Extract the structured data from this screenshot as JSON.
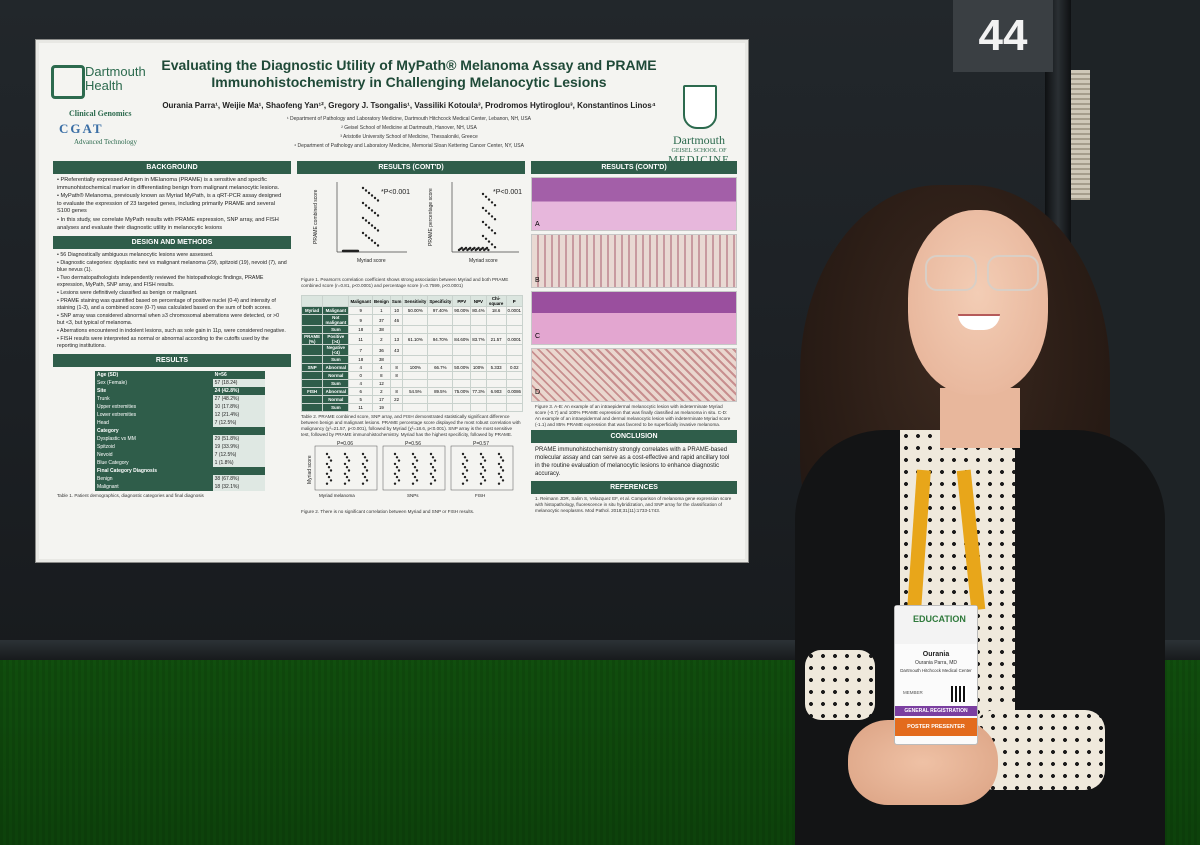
{
  "booth_number": "44",
  "poster": {
    "title": "Evaluating the Diagnostic Utility of MyPath® Melanoma Assay and PRAME Immunohistochemistry in Challenging Melanocytic Lesions",
    "authors": "Ourania Parra¹, Weijie Ma¹, Shaofeng Yan¹², Gregory J. Tsongalis¹, Vassiliki Kotoula³, Prodromos Hytiroglou³, Konstantinos Linos⁴",
    "affiliations": [
      "¹ Department of Pathology and Laboratory Medicine, Dartmouth Hitchcock Medical Center, Lebanon, NH, USA",
      "² Geisel School of Medicine at Dartmouth, Hanover, NH, USA",
      "³ Aristotle University School of Medicine, Thessaloniki, Greece",
      "⁴ Department of Pathology and Laboratory Medicine, Memorial Sloan Kettering Cancer Center, NY, USA"
    ],
    "logo_left": "Dartmouth Health",
    "logo_cg_label": "Clinical Genomics",
    "logo_cg_dna": "CGAT",
    "logo_cg_sub": "Advanced Technology",
    "logo_right_a": "Dartmouth",
    "logo_right_b": "GEISEL SCHOOL OF",
    "logo_right_c": "MEDICINE",
    "sections": {
      "background": "BACKGROUND",
      "design": "DESIGN AND METHODS",
      "results": "RESULTS",
      "results_contd_1": "RESULTS (CONT'D)",
      "results_contd_2": "RESULTS (CONT'D)",
      "conclusion": "CONCLUSION",
      "references": "REFERENCES"
    },
    "background_bullets": [
      "PReferentially expressed Antigen in MElanoma (PRAME) is a sensitive and specific immunohistochemical marker in differentiating benign from malignant melanocytic lesions.",
      "MyPath® Melanoma, previously known as Myriad MyPath, is a qRT-PCR assay designed to evaluate the expression of 23 targeted genes, including primarily PRAME and several S100 genes",
      "In this study, we correlate MyPath results with PRAME expression, SNP array, and FISH analyses and evaluate their diagnostic utility in melanocytic lesions"
    ],
    "design_bullets": [
      "56 Diagnostically ambiguous melanocytic lesions were assessed.",
      "Diagnostic categories: dysplastic nevi vs malignant melanoma (29), spitzoid (19), nevoid (7), and blue nevus (1).",
      "Two dermatopathologists independently reviewed the histopathologic findings, PRAME expression, MyPath, SNP array, and FISH results.",
      "Lesions were definitively classified as benign or malignant.",
      "PRAME staining was quantified based on percentage of positive nuclei (0-4) and intensity of staining (1-3), and a combined score (0-7) was calculated based on the sum of both scores.",
      "SNP array was considered abnormal when ≥3 chromosomal aberrations were detected, or >0 but <3, but typical of melanoma.",
      "Aberrations encountered in indolent lesions, such as sole gain in 11p, were considered negative.",
      "FISH results were interpreted as normal or abnormal according to the cutoffs used by the reporting institutions."
    ],
    "demo_table": [
      {
        "k": "Age (SD)",
        "v": "N=56",
        "head": true
      },
      {
        "k": "Sex (Female)",
        "v": "57 (18.24)"
      },
      {
        "k": "Site",
        "v": "24 (42.8%)",
        "head": true
      },
      {
        "k": "Trunk",
        "v": "27 (48.2%)"
      },
      {
        "k": "Upper extremities",
        "v": "10 (17.8%)"
      },
      {
        "k": "Lower extremities",
        "v": "12 (21.4%)"
      },
      {
        "k": "Head",
        "v": "7 (12.5%)"
      },
      {
        "k": "Category",
        "v": "",
        "head": true
      },
      {
        "k": "Dysplastic vs MM",
        "v": "29 (51.8%)"
      },
      {
        "k": "Spitzoid",
        "v": "19 (33.9%)"
      },
      {
        "k": "Nevoid",
        "v": "7 (12.5%)"
      },
      {
        "k": "Blue Category",
        "v": "1 (1.8%)"
      },
      {
        "k": "Final Category Diagnosis",
        "v": "",
        "head": true
      },
      {
        "k": "Benign",
        "v": "38 (67.8%)"
      },
      {
        "k": "Malignant",
        "v": "18 (32.1%)"
      }
    ],
    "table1_caption": "Table 1. Patient demographics, diagnostic categories and final diagnosis",
    "fig1": {
      "ylabel_a": "PRAME combined score",
      "ylabel_b": "PRAME percentage score",
      "xlabel": "Myriad score",
      "p_a": "*P<0.001",
      "p_b": "*P<0.001",
      "caption": "Figure 1. Pearson's correlation coefficient shows strong association between Myriad and both PRAME combined score (r=0.81, p<0.0001) and percentage score (r=0.7599, p<0.0001)"
    },
    "stats_header": [
      "",
      "",
      "Malignant",
      "Benign",
      "Sum",
      "Sensitivity",
      "Specificity",
      "PPV",
      "NPV",
      "Chi-square",
      "P"
    ],
    "stats_rows": [
      [
        "Myriad",
        "Malignant",
        "9",
        "1",
        "10",
        "50.00%",
        "97.40%",
        "90.00%",
        "80.4%",
        "18.6",
        "0.0001"
      ],
      [
        "",
        "Not malignant",
        "9",
        "37",
        "46",
        "",
        "",
        "",
        "",
        "",
        ""
      ],
      [
        "",
        "Sum",
        "18",
        "38",
        "",
        "",
        "",
        "",
        "",
        "",
        ""
      ],
      [
        "PRAME (%)",
        "Positive (>4)",
        "11",
        "2",
        "13",
        "61.10%",
        "94.70%",
        "84.60%",
        "83.7%",
        "21.57",
        "0.0001"
      ],
      [
        "",
        "Negative (<4)",
        "7",
        "36",
        "43",
        "",
        "",
        "",
        "",
        "",
        ""
      ],
      [
        "",
        "Sum",
        "18",
        "38",
        "",
        "",
        "",
        "",
        "",
        "",
        ""
      ],
      [
        "SNP",
        "Abnormal",
        "4",
        "4",
        "8",
        "100%",
        "66.7%",
        "50.00%",
        "100%",
        "5.333",
        "0.02"
      ],
      [
        "",
        "Normal",
        "0",
        "8",
        "8",
        "",
        "",
        "",
        "",
        "",
        ""
      ],
      [
        "",
        "Sum",
        "4",
        "12",
        "",
        "",
        "",
        "",
        "",
        "",
        ""
      ],
      [
        "FISH",
        "Abnormal",
        "6",
        "2",
        "8",
        "54.5%",
        "89.5%",
        "75.00%",
        "77.3%",
        "6.903",
        "0.0086"
      ],
      [
        "",
        "Normal",
        "5",
        "17",
        "22",
        "",
        "",
        "",
        "",
        "",
        ""
      ],
      [
        "",
        "Sum",
        "11",
        "19",
        "",
        "",
        "",
        "",
        "",
        "",
        ""
      ]
    ],
    "table2_caption": "Table 2. PRAME combined score, SNP array, and FISH demonstrated statistically significant difference between benign and malignant lesions. PRAME percentage score displayed the most robust correlation with malignancy (χ²=21.57, p<0.001), followed by Myriad (χ²=18.6, p<0.001). SNP array is the most sensitive test, followed by PRAME immunohistochemistry. Myriad has the highest specificity, followed by PRAME.",
    "fig2": {
      "ylabel": "Myriad score",
      "p1": "P=0.06",
      "p2": "P=0.56",
      "p3": "P=0.57",
      "x1": "Myriad melanoma",
      "x2": "SNPs",
      "x3": "FISH",
      "caption": "Figure 2. There is no significant correlation between Myriad and SNP or FISH results."
    },
    "fig3_labels": [
      "A",
      "B",
      "C",
      "D"
    ],
    "fig3_caption": "Figure 3. A-B: An example of an intraepidermal melanocytic lesion with indeterminate Myriad score (-0.7) and 100% PRAME expression that was finally classified as melanoma in situ. C-D: An example of an intraepidermal and dermal melanocytic lesion with indeterminate Myriad score (-1.1) and 85% PRAME expression that was favored to be superficially invasive melanoma.",
    "conclusion": "PRAME immunohistochemistry strongly correlates with a PRAME-based molecular assay and can serve as a cost-effective and rapid ancillary tool in the routine evaluation of melanocytic lesions to enhance diagnostic accuracy.",
    "reference": "1. Reimann JDR, Salim S, Velazquez EF, et al. Comparison of melanoma gene expression score with histopathology, fluorescence in situ hybridization, and SNP array for the classification of melanocytic neoplasms. Mod Pathol. 2018;31(11):1733-1743."
  },
  "badge": {
    "event": "EDUCATION",
    "first_name": "Ourania",
    "full_name": "Ourania Parra, MD",
    "institution": "Dartmouth Hitchcock Medical Center",
    "member": "MEMBER",
    "registration": "GENERAL REGISTRATION",
    "role": "POSTER PRESENTER"
  }
}
